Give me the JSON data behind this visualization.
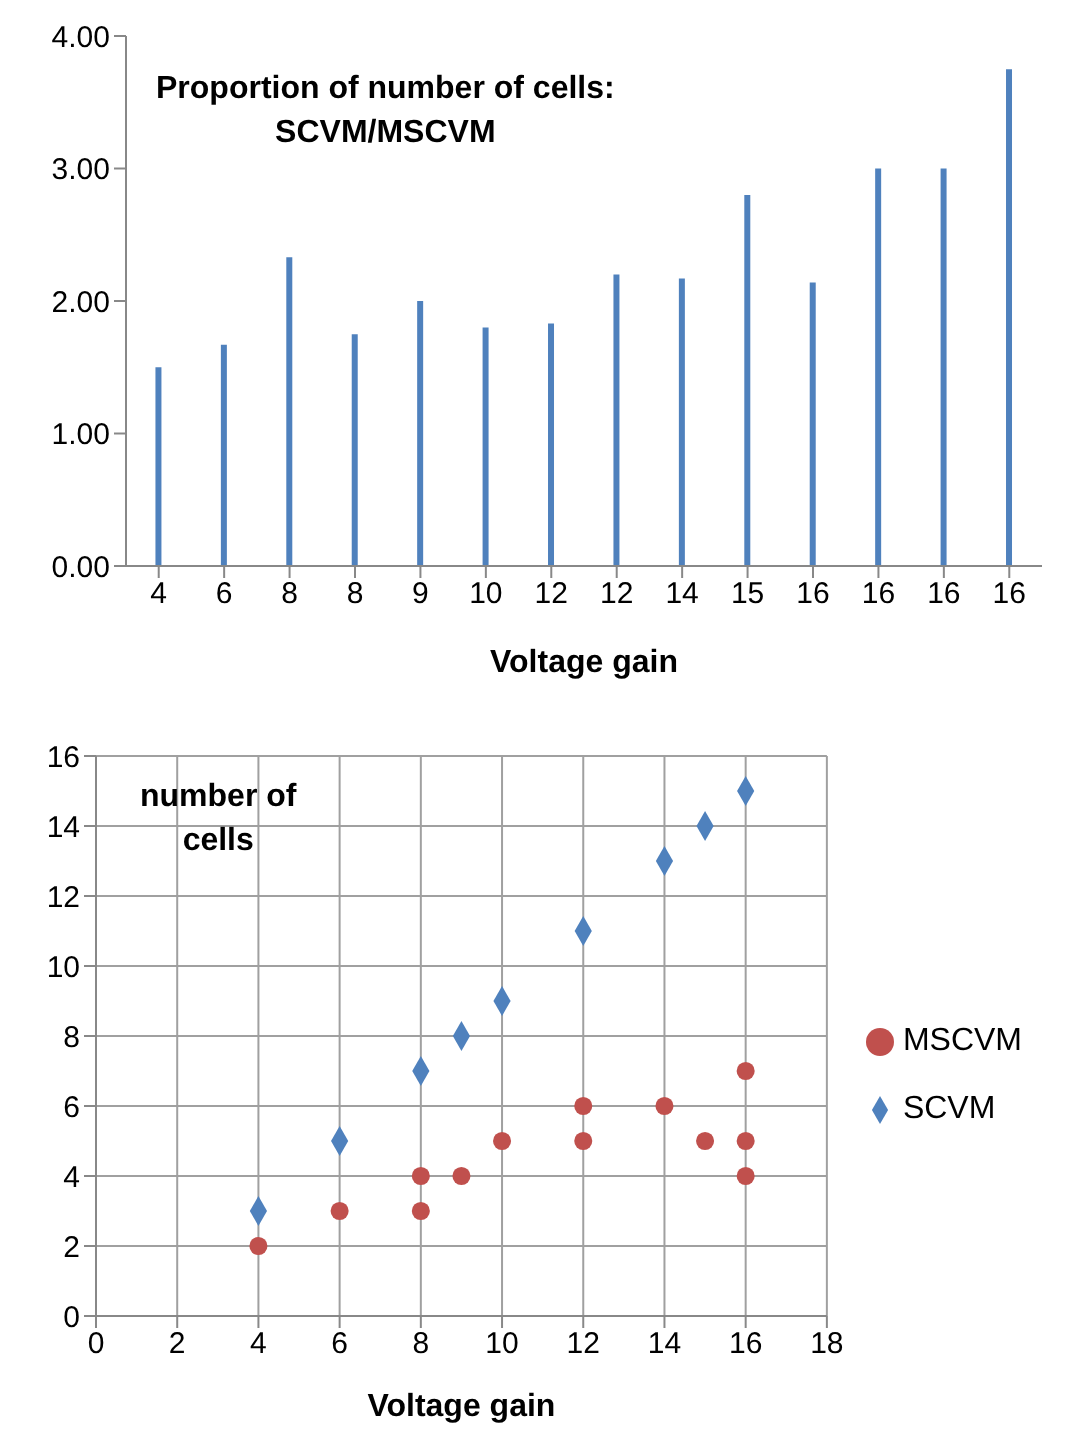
{
  "chart_data": [
    {
      "type": "bar",
      "title": "Proportion of number of cells:\nSCVM/MSCVM",
      "xlabel": "Voltage gain",
      "categories": [
        "4",
        "6",
        "8",
        "8",
        "9",
        "10",
        "12",
        "12",
        "14",
        "15",
        "16",
        "16",
        "16",
        "16"
      ],
      "values": [
        1.5,
        1.67,
        2.33,
        1.75,
        2.0,
        1.8,
        1.83,
        2.2,
        2.17,
        2.8,
        2.14,
        3.0,
        3.0,
        3.75
      ],
      "color": "#4f81bd",
      "ylim": [
        0,
        4
      ],
      "yticks": [
        {
          "value": 0,
          "label": "0.00"
        },
        {
          "value": 1,
          "label": "1.00"
        },
        {
          "value": 2,
          "label": "2.00"
        },
        {
          "value": 3,
          "label": "3.00"
        },
        {
          "value": 4,
          "label": "4.00"
        }
      ],
      "grid": false
    },
    {
      "type": "scatter",
      "title": "number of\ncells",
      "xlabel": "Voltage gain",
      "legend": "right",
      "grid": true,
      "xlim": [
        0,
        18
      ],
      "xticks": [
        0,
        2,
        4,
        6,
        8,
        10,
        12,
        14,
        16,
        18
      ],
      "ylim": [
        0,
        16
      ],
      "yticks": [
        0,
        2,
        4,
        6,
        8,
        10,
        12,
        14,
        16
      ],
      "series": [
        {
          "name": "SCVM",
          "color": "#4f81bd",
          "marker": "diamond",
          "x": [
            4,
            6,
            8,
            9,
            10,
            12,
            14,
            15,
            16
          ],
          "values": [
            3,
            5,
            7,
            8,
            9,
            11,
            13,
            14,
            15
          ]
        },
        {
          "name": "MSCVM",
          "color": "#c0504d",
          "marker": "circle",
          "x": [
            4,
            6,
            8,
            8,
            9,
            10,
            12,
            12,
            14,
            15,
            16,
            16,
            16
          ],
          "values": [
            2,
            3,
            4,
            3,
            4,
            5,
            6,
            5,
            6,
            5,
            7,
            5,
            4
          ]
        }
      ]
    }
  ]
}
